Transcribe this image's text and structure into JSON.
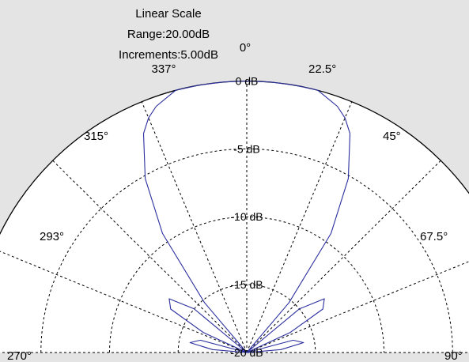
{
  "chart_data": {
    "type": "polar",
    "scale_info": [
      "Linear Scale",
      "Range:20.00dB",
      "Increments:5.00dB"
    ],
    "angle_labels": [
      {
        "angle": 0,
        "label": "0°"
      },
      {
        "angle": 22.5,
        "label": "22.5°"
      },
      {
        "angle": 45,
        "label": "45°"
      },
      {
        "angle": 67.5,
        "label": "67.5°"
      },
      {
        "angle": 90,
        "label": "90°"
      },
      {
        "angle": -22.5,
        "label": "337°"
      },
      {
        "angle": -45,
        "label": "315°"
      },
      {
        "angle": -67.5,
        "label": "293°"
      },
      {
        "angle": -90,
        "label": "270°"
      }
    ],
    "radial_labels": [
      {
        "value": 0,
        "label": "0 dB"
      },
      {
        "value": -5,
        "label": "-5 dB"
      },
      {
        "value": -10,
        "label": "-10 dB"
      },
      {
        "value": -15,
        "label": "-15 dB"
      },
      {
        "value": -20,
        "label": "-20 dB"
      }
    ],
    "r_range": [
      -20,
      0
    ],
    "theta_range": [
      -90,
      90
    ],
    "grid": true,
    "series": [
      {
        "color": "#2b2f9e",
        "theta": [
          -90,
          -85,
          -80,
          -75,
          -70,
          -65,
          -60,
          -55,
          -50,
          -45,
          -40,
          -35,
          -30,
          -25,
          -22.5,
          -20,
          -15,
          -10,
          -5,
          0,
          5,
          10,
          15,
          20,
          22.5,
          25,
          30,
          35,
          40,
          45,
          50,
          55,
          60,
          65,
          70,
          75,
          80,
          85,
          90
        ],
        "r_db": [
          -20,
          -17.5,
          -15.8,
          -16.5,
          -20,
          -16.5,
          -13.6,
          -13.1,
          -15,
          -20,
          -15.2,
          -9.3,
          -5.2,
          -2.2,
          -1.3,
          -0.7,
          0,
          0,
          0,
          0,
          0,
          0,
          0,
          -0.7,
          -1.3,
          -2.2,
          -5.2,
          -9.3,
          -15.2,
          -20,
          -15,
          -13.1,
          -13.6,
          -16.5,
          -20,
          -16.5,
          -15.8,
          -17.5,
          -20
        ]
      }
    ]
  },
  "colors": {
    "background": "#e4e4e4",
    "plot_fill": "#ffffff",
    "grid": "#000000",
    "trace": "#2b2f9e"
  }
}
